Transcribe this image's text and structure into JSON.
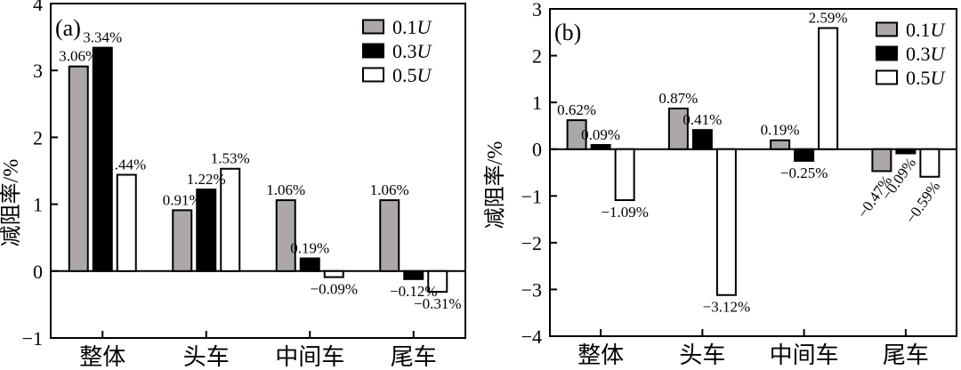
{
  "figure": {
    "background": "#ffffff",
    "description_labels": {
      "panel_a": "(a)",
      "panel_b": "(b)"
    }
  },
  "chart_data": [
    {
      "type": "bar",
      "panel_label": "(a)",
      "ylabel": "减阻率/%",
      "xlabel": "",
      "ylim": [
        -1,
        4
      ],
      "yticks": [
        4,
        3,
        2,
        1,
        0,
        -1
      ],
      "grid": false,
      "legend_position": "top-right",
      "legend_entries": [
        "0.1U",
        "0.3U",
        "0.5U"
      ],
      "categories": [
        "整体",
        "头车",
        "中间车",
        "尾车"
      ],
      "series": [
        {
          "name": "0.1U",
          "values": [
            3.06,
            0.91,
            1.06,
            1.06
          ]
        },
        {
          "name": "0.3U",
          "values": [
            3.34,
            1.22,
            0.19,
            -0.12
          ]
        },
        {
          "name": "0.5U",
          "values": [
            1.44,
            1.53,
            -0.09,
            -0.31
          ]
        }
      ],
      "value_labels": [
        [
          "3.06%",
          "0.91%",
          "1.06%",
          "1.06%"
        ],
        [
          "3.34%",
          "1.22%",
          "0.19%",
          "−0.12%"
        ],
        [
          "1.44%",
          "1.53%",
          "−0.09%",
          "−0.31%"
        ]
      ],
      "colors": [
        "#ada7a7",
        "#000000",
        "#ffffff"
      ],
      "bar_edge_color": "#000000",
      "rotated_value_labels_category": null
    },
    {
      "type": "bar",
      "panel_label": "(b)",
      "ylabel": "减阻率/%",
      "xlabel": "",
      "ylim": [
        -4,
        3
      ],
      "yticks": [
        3,
        2,
        1,
        0,
        -1,
        -2,
        -3,
        -4
      ],
      "grid": false,
      "legend_position": "top-right",
      "legend_entries": [
        "0.1U",
        "0.3U",
        "0.5U"
      ],
      "categories": [
        "整体",
        "头车",
        "中间车",
        "尾车"
      ],
      "series": [
        {
          "name": "0.1U",
          "values": [
            0.62,
            0.87,
            0.19,
            -0.47
          ]
        },
        {
          "name": "0.3U",
          "values": [
            0.09,
            0.41,
            -0.25,
            -0.09
          ]
        },
        {
          "name": "0.5U",
          "values": [
            -1.09,
            -3.12,
            2.59,
            -0.59
          ]
        }
      ],
      "value_labels": [
        [
          "0.62%",
          "0.87%",
          "0.19%",
          "−0.47%"
        ],
        [
          "0.09%",
          "0.41%",
          "−0.25%",
          "−0.09%"
        ],
        [
          "−1.09%",
          "−3.12%",
          "2.59%",
          "−0.59%"
        ]
      ],
      "colors": [
        "#ada7a7",
        "#000000",
        "#ffffff"
      ],
      "bar_edge_color": "#000000",
      "rotated_value_labels_category": "尾车"
    }
  ]
}
